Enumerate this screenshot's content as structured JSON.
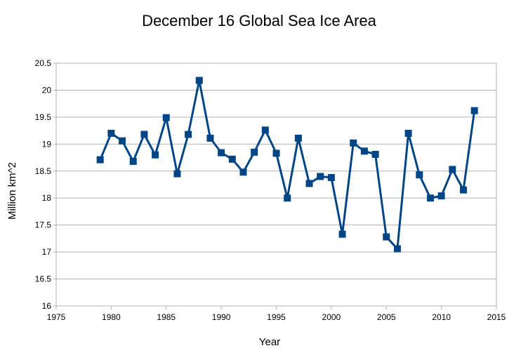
{
  "chart_data": {
    "type": "line",
    "title": "December 16 Global Sea Ice Area",
    "xlabel": "Year",
    "ylabel": "Million km^2",
    "xlim": [
      1975,
      2015
    ],
    "ylim": [
      16,
      20.5
    ],
    "x_ticks": [
      "1975",
      "1980",
      "1985",
      "1990",
      "1995",
      "2000",
      "2005",
      "2010",
      "2015"
    ],
    "y_ticks": [
      "16",
      "16.5",
      "17",
      "17.5",
      "18",
      "18.5",
      "19",
      "19.5",
      "20",
      "20.5"
    ],
    "grid": "horizontal",
    "legend": "none",
    "series": [
      {
        "color": "#004586",
        "marker": "square",
        "x": [
          1979,
          1980,
          1981,
          1982,
          1983,
          1984,
          1985,
          1986,
          1987,
          1988,
          1989,
          1990,
          1991,
          1992,
          1993,
          1994,
          1995,
          1996,
          1997,
          1998,
          1999,
          2000,
          2001,
          2002,
          2003,
          2004,
          2005,
          2006,
          2007,
          2008,
          2009,
          2010,
          2011,
          2012,
          2013
        ],
        "values": [
          18.71,
          19.2,
          19.06,
          18.68,
          19.18,
          18.8,
          19.49,
          18.45,
          19.18,
          20.18,
          19.11,
          18.84,
          18.72,
          18.48,
          18.85,
          19.26,
          18.83,
          18.0,
          19.11,
          18.27,
          18.4,
          18.38,
          17.33,
          19.02,
          18.87,
          18.81,
          17.28,
          17.06,
          19.2,
          18.43,
          18.0,
          18.04,
          18.53,
          18.15,
          19.62
        ]
      }
    ]
  }
}
